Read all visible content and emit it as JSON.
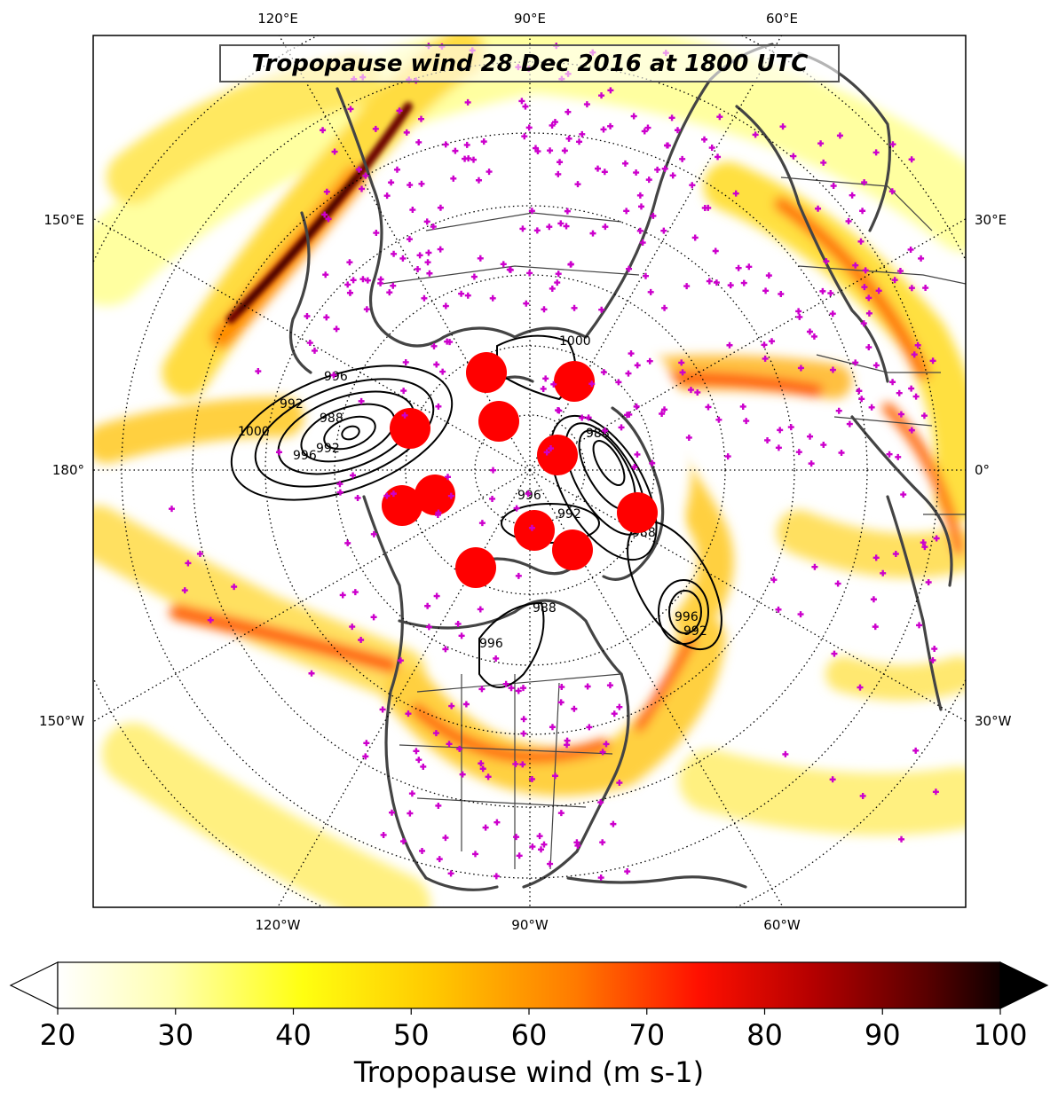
{
  "title": "Tropopause wind 28 Dec 2016 at 1800 UTC",
  "top_labels": [
    "120°E",
    "90°E",
    "60°E"
  ],
  "bottom_labels": [
    "120°W",
    "90°W",
    "60°W"
  ],
  "left_labels": [
    "150°E",
    "180°",
    "150°W"
  ],
  "right_labels": [
    "30°E",
    "0°",
    "30°W"
  ],
  "contour_labels": [
    "1000",
    "996",
    "992",
    "988",
    "1000",
    "996",
    "992",
    "988",
    "996",
    "992",
    "988",
    "996",
    "992",
    "988",
    "996"
  ],
  "colorbar": {
    "label": "Tropopause wind (m s-1)",
    "min": 20,
    "max": 100,
    "ticks": [
      "20",
      "30",
      "40",
      "50",
      "60",
      "70",
      "80",
      "90",
      "100"
    ]
  },
  "colors": {
    "frame": "#000000",
    "coastline": "#444444",
    "marker_plus": "#cc00cc",
    "cyclone_dot": "#ff0000",
    "contour": "#000000"
  },
  "markers": {
    "plus_icon": "magenta-plus",
    "dot_icon": "red-circle"
  }
}
